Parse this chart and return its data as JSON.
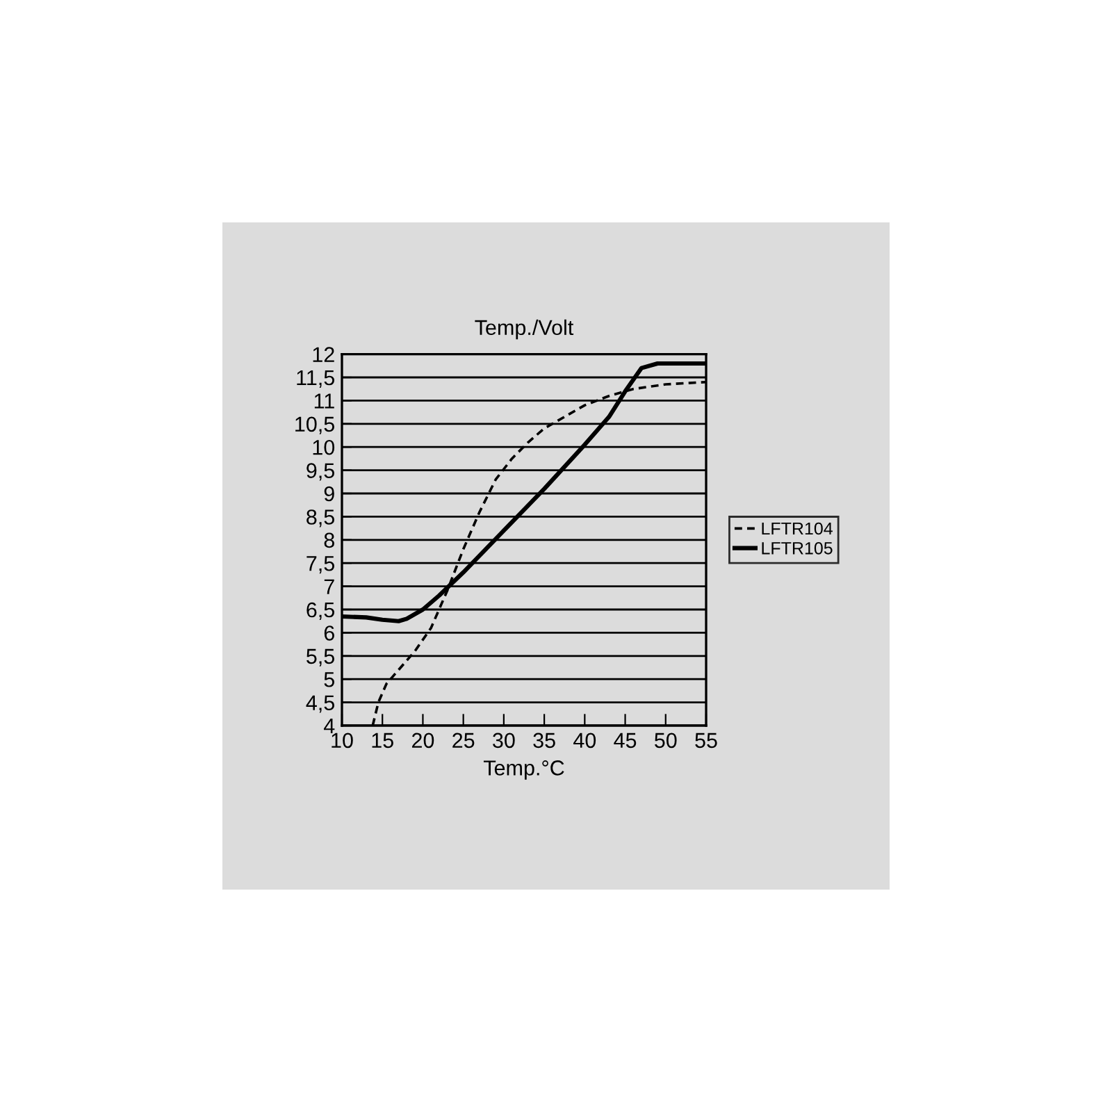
{
  "chart_data": {
    "type": "line",
    "title": "Temp./Volt",
    "xlabel": "Temp.°C",
    "xlim": [
      10,
      55
    ],
    "xticks": [
      10,
      15,
      20,
      25,
      30,
      35,
      40,
      45,
      50,
      55
    ],
    "ylim": [
      4,
      12
    ],
    "yticks": [
      4,
      {
        "value": 4.5,
        "label": "4,5"
      },
      5,
      {
        "value": 5.5,
        "label": "5,5"
      },
      6,
      {
        "value": 6.5,
        "label": "6,5"
      },
      7,
      {
        "value": 7.5,
        "label": "7,5"
      },
      8,
      {
        "value": 8.5,
        "label": "8,5"
      },
      9,
      {
        "value": 9.5,
        "label": "9,5"
      },
      10,
      {
        "value": 10.5,
        "label": "10,5"
      },
      11,
      {
        "value": 11.5,
        "label": "11,5"
      },
      12
    ],
    "grid": "y",
    "legend": "right",
    "series": [
      {
        "name": "LFTR104",
        "color": "#000000",
        "line_style": "dashed",
        "x": [
          13.8,
          14.5,
          15.5,
          17,
          19,
          21,
          23,
          25,
          27,
          29,
          31,
          33,
          35,
          38,
          40,
          43,
          46,
          50,
          55
        ],
        "values": [
          4,
          4.5,
          4.9,
          5.2,
          5.6,
          6.1,
          6.9,
          7.8,
          8.6,
          9.3,
          9.75,
          10.1,
          10.4,
          10.7,
          10.9,
          11.1,
          11.25,
          11.35,
          11.4
        ]
      },
      {
        "name": "LFTR105",
        "color": "#000000",
        "line_style": "solid",
        "x": [
          10,
          13,
          15,
          17,
          18,
          20,
          22,
          25,
          30,
          35,
          40,
          43,
          45,
          47,
          49,
          55
        ],
        "values": [
          6.35,
          6.33,
          6.28,
          6.25,
          6.3,
          6.5,
          6.8,
          7.3,
          8.2,
          9.1,
          10.05,
          10.65,
          11.2,
          11.7,
          11.8,
          11.8
        ]
      }
    ]
  }
}
